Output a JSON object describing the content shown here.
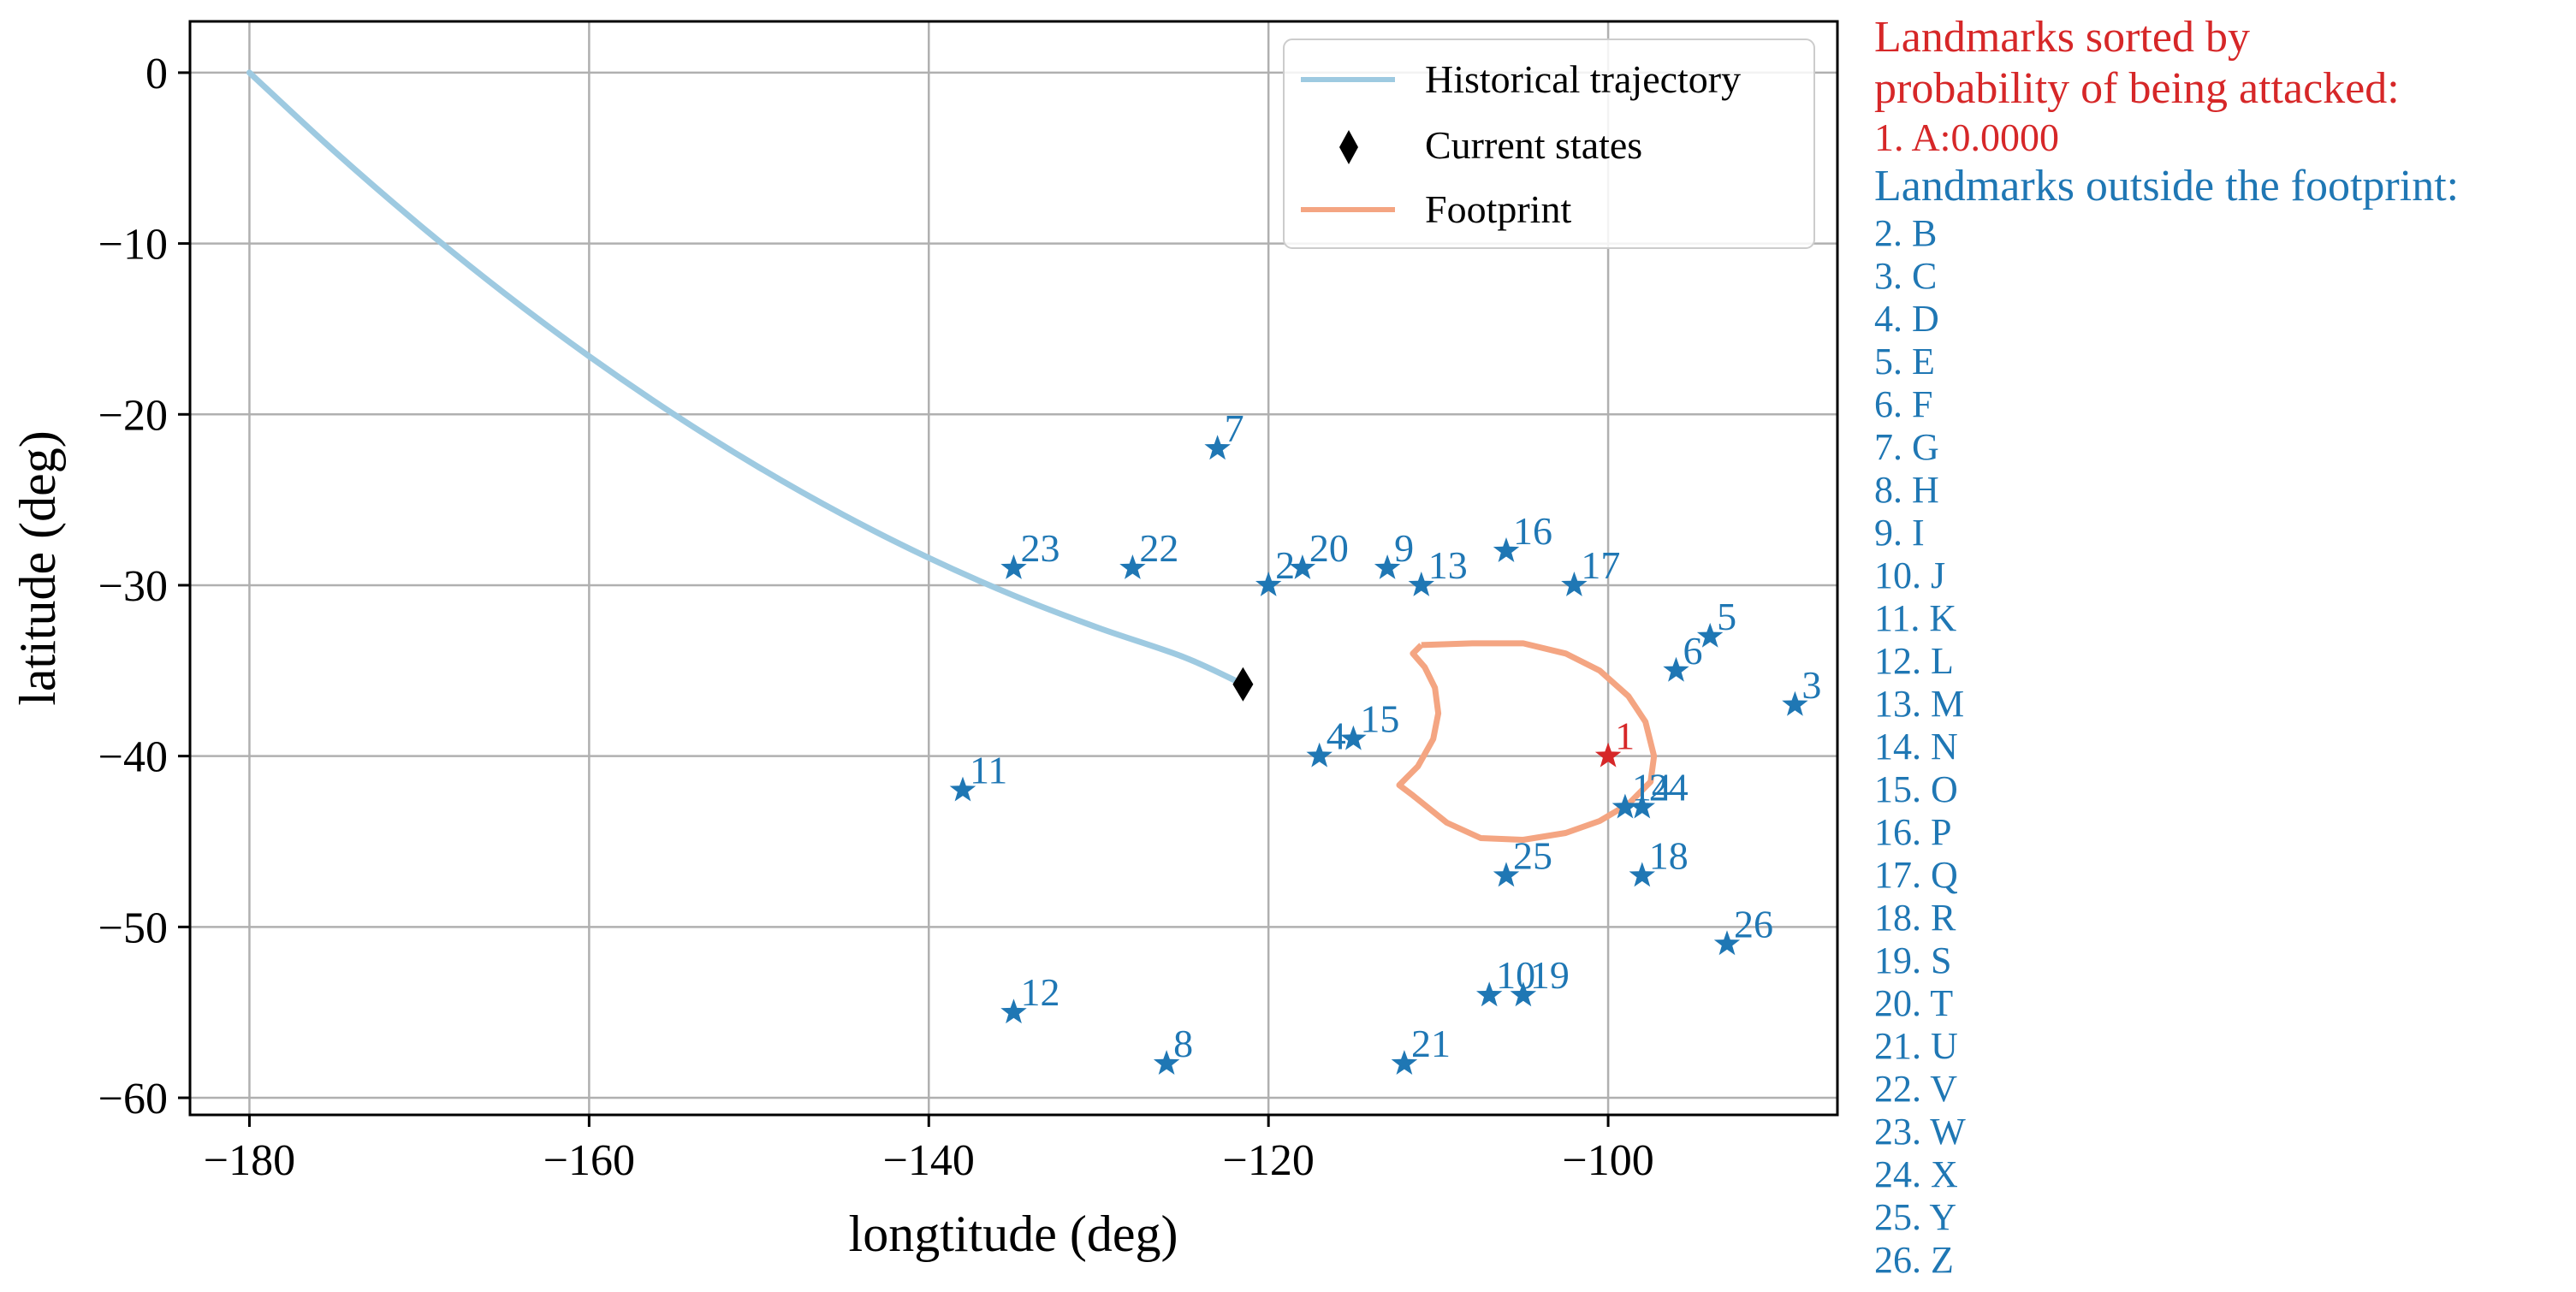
{
  "chart_data": {
    "type": "scatter",
    "xlabel": "longtitude (deg)",
    "ylabel": "latitude (deg)",
    "xlim": [
      -183.5,
      -86.5
    ],
    "ylim": [
      -61,
      3
    ],
    "xticks": [
      -180,
      -160,
      -140,
      -120,
      -100
    ],
    "yticks": [
      0,
      -10,
      -20,
      -30,
      -40,
      -50,
      -60
    ],
    "xtick_labels": [
      "−180",
      "−160",
      "−140",
      "−120",
      "−100"
    ],
    "ytick_labels": [
      "0",
      "−10",
      "−20",
      "−30",
      "−40",
      "−50",
      "−60"
    ],
    "grid": true,
    "colors": {
      "trajectory": "#9ecae1",
      "footprint": "#f4a582",
      "landmark": "#1f77b4",
      "attacked": "#d62728",
      "state": "#000000",
      "grid": "#b0b0b0"
    },
    "legend": {
      "placement": "top-right",
      "entries": [
        {
          "label": "Historical trajectory",
          "marker": "line",
          "color": "#9ecae1"
        },
        {
          "label": "Current states",
          "marker": "diamond",
          "color": "#000000"
        },
        {
          "label": "Footprint",
          "marker": "line",
          "color": "#f4a582"
        }
      ]
    },
    "trajectory": [
      [
        -180,
        0
      ],
      [
        -175,
        -4.6
      ],
      [
        -170,
        -8.9
      ],
      [
        -165,
        -12.9
      ],
      [
        -160,
        -16.6
      ],
      [
        -155,
        -20.0
      ],
      [
        -150,
        -23.1
      ],
      [
        -145,
        -25.9
      ],
      [
        -140,
        -28.4
      ],
      [
        -135,
        -30.6
      ],
      [
        -130,
        -32.5
      ],
      [
        -125,
        -34.2
      ],
      [
        -121.5,
        -35.8
      ]
    ],
    "current_state": [
      -121.5,
      -35.8
    ],
    "footprint": [
      [
        -111,
        -33.5
      ],
      [
        -108,
        -33.4
      ],
      [
        -105,
        -33.4
      ],
      [
        -102.5,
        -34.0
      ],
      [
        -100.5,
        -35.0
      ],
      [
        -98.8,
        -36.5
      ],
      [
        -97.8,
        -38.0
      ],
      [
        -97.3,
        -40.0
      ],
      [
        -97.5,
        -41.5
      ],
      [
        -98.8,
        -42.8
      ],
      [
        -100.5,
        -43.8
      ],
      [
        -102.5,
        -44.5
      ],
      [
        -105,
        -44.9
      ],
      [
        -107.5,
        -44.8
      ],
      [
        -109.5,
        -43.9
      ],
      [
        -111.5,
        -42.3
      ],
      [
        -112.3,
        -41.7
      ],
      [
        -111.2,
        -40.6
      ],
      [
        -110.3,
        -39.0
      ],
      [
        -110.0,
        -37.5
      ],
      [
        -110.2,
        -36.0
      ],
      [
        -110.8,
        -34.8
      ],
      [
        -111.5,
        -34.0
      ],
      [
        -111,
        -33.5
      ]
    ],
    "landmarks": [
      {
        "label": "1",
        "x": -100,
        "y": -40,
        "attacked": true
      },
      {
        "label": "2",
        "x": -120,
        "y": -30
      },
      {
        "label": "3",
        "x": -89,
        "y": -37
      },
      {
        "label": "4",
        "x": -117,
        "y": -40
      },
      {
        "label": "5",
        "x": -94,
        "y": -33
      },
      {
        "label": "6",
        "x": -96,
        "y": -35
      },
      {
        "label": "7",
        "x": -123,
        "y": -22
      },
      {
        "label": "8",
        "x": -126,
        "y": -58
      },
      {
        "label": "9",
        "x": -113,
        "y": -29
      },
      {
        "label": "10",
        "x": -107,
        "y": -54
      },
      {
        "label": "11",
        "x": -138,
        "y": -42
      },
      {
        "label": "12",
        "x": -135,
        "y": -55
      },
      {
        "label": "13",
        "x": -111,
        "y": -30
      },
      {
        "label": "14",
        "x": -99,
        "y": -43
      },
      {
        "label": "15",
        "x": -115,
        "y": -39
      },
      {
        "label": "16",
        "x": -106,
        "y": -28
      },
      {
        "label": "17",
        "x": -102,
        "y": -30
      },
      {
        "label": "18",
        "x": -98,
        "y": -47
      },
      {
        "label": "19",
        "x": -105,
        "y": -54
      },
      {
        "label": "20",
        "x": -118,
        "y": -29
      },
      {
        "label": "21",
        "x": -112,
        "y": -58
      },
      {
        "label": "22",
        "x": -128,
        "y": -29
      },
      {
        "label": "23",
        "x": -135,
        "y": -29
      },
      {
        "label": "24",
        "x": -98,
        "y": -43
      },
      {
        "label": "25",
        "x": -106,
        "y": -47
      },
      {
        "label": "26",
        "x": -93,
        "y": -51
      }
    ]
  },
  "sidebar": {
    "heading_line1": "Landmarks sorted by",
    "heading_line2": "probability of being attacked:",
    "attacked_item": "1. A:0.0000",
    "outside_heading": "Landmarks outside the footprint:",
    "outside_items": [
      "2. B",
      "3. C",
      "4. D",
      "5. E",
      "6. F",
      "7. G",
      "8. H",
      "9. I",
      "10. J",
      "11. K",
      "12. L",
      "13. M",
      "14. N",
      "15. O",
      "16. P",
      "17. Q",
      "18. R",
      "19. S",
      "20. T",
      "21. U",
      "22. V",
      "23. W",
      "24. X",
      "25. Y",
      "26. Z"
    ]
  }
}
